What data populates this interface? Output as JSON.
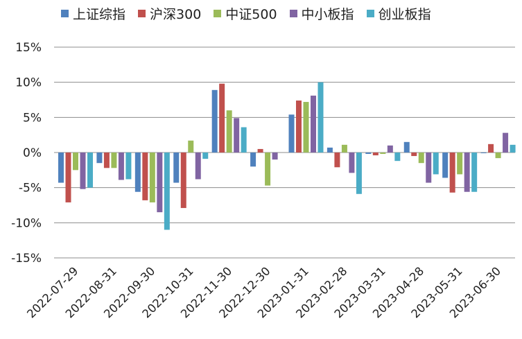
{
  "chart_data": {
    "type": "bar",
    "title": "",
    "xlabel": "",
    "ylabel": "",
    "ylim": [
      -15,
      15
    ],
    "yticks": [
      "-15%",
      "-10%",
      "-5%",
      "0%",
      "5%",
      "10%",
      "15%"
    ],
    "ytick_values": [
      -15,
      -10,
      -5,
      0,
      5,
      10,
      15
    ],
    "categories": [
      "2022-07-29",
      "2022-08-31",
      "2022-09-30",
      "2022-10-31",
      "2022-11-30",
      "2022-12-30",
      "2023-01-31",
      "2023-02-28",
      "2023-03-31",
      "2023-04-28",
      "2023-05-31",
      "2023-06-30"
    ],
    "series": [
      {
        "name": "上证综指",
        "color": "#4f81bd",
        "values": [
          -4.3,
          -1.5,
          -5.6,
          -4.3,
          8.9,
          -2.0,
          5.4,
          0.7,
          -0.2,
          1.5,
          -3.6,
          -0.1
        ]
      },
      {
        "name": "沪深300",
        "color": "#c0504d",
        "values": [
          -7.1,
          -2.2,
          -6.8,
          -7.9,
          9.8,
          0.5,
          7.4,
          -2.1,
          -0.4,
          -0.5,
          -5.7,
          1.2
        ]
      },
      {
        "name": "中证500",
        "color": "#9bbb59",
        "values": [
          -2.5,
          -2.2,
          -7.1,
          1.7,
          6.0,
          -4.7,
          7.2,
          1.1,
          -0.2,
          -1.5,
          -3.1,
          -0.8
        ]
      },
      {
        "name": "中小板指",
        "color": "#8064a2",
        "values": [
          -5.2,
          -3.9,
          -8.5,
          -3.8,
          4.9,
          -1.0,
          8.1,
          -2.9,
          1.0,
          -4.3,
          -5.6,
          2.8
        ]
      },
      {
        "name": "创业板指",
        "color": "#4bacc6",
        "values": [
          -5.0,
          -3.8,
          -11.0,
          -0.9,
          3.6,
          0.0,
          10.0,
          -5.9,
          -1.2,
          -3.1,
          -5.6,
          1.1
        ]
      }
    ],
    "grid": true,
    "legend": "top"
  }
}
